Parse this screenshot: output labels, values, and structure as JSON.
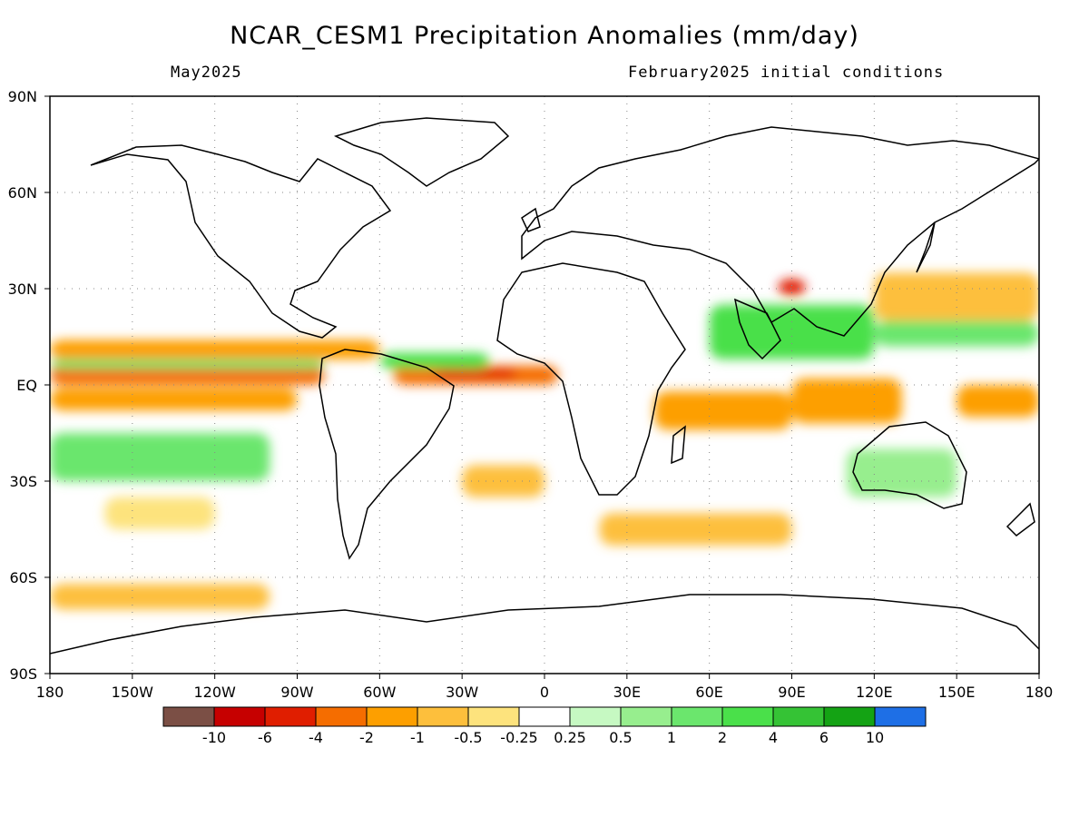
{
  "header": {
    "title": "NCAR_CESM1 Precipitation Anomalies (mm/day)",
    "valid_month": "May2025",
    "init": "February2025 initial conditions"
  },
  "axes": {
    "lat_labels": [
      "90N",
      "60N",
      "30N",
      "EQ",
      "30S",
      "60S",
      "90S"
    ],
    "lat_values": [
      90,
      60,
      30,
      0,
      -30,
      -60,
      -90
    ],
    "lon_labels": [
      "180",
      "150W",
      "120W",
      "90W",
      "60W",
      "30W",
      "0",
      "30E",
      "60E",
      "90E",
      "120E",
      "150E",
      "180"
    ],
    "lon_values": [
      -180,
      -150,
      -120,
      -90,
      -60,
      -30,
      0,
      30,
      60,
      90,
      120,
      150,
      180
    ],
    "grid": true
  },
  "legend": {
    "colors": [
      "#7b4f45",
      "#c60000",
      "#e01e00",
      "#f56d00",
      "#fd9f00",
      "#fdbf3c",
      "#fde37d",
      "#ffffff",
      "#c6f9c2",
      "#97ee8e",
      "#6be66d",
      "#4ae04a",
      "#35c335",
      "#14a314",
      "#1e6fe6"
    ],
    "labels": [
      "-10",
      "-6",
      "-4",
      "-2",
      "-1",
      "-0.5",
      "-0.25",
      "0.25",
      "0.5",
      "1",
      "2",
      "4",
      "6",
      "10"
    ]
  },
  "chart_data": {
    "type": "heatmap",
    "title": "NCAR_CESM1 Precipitation Anomalies (mm/day)",
    "subtitle_left": "May2025",
    "subtitle_right": "February2025 initial conditions",
    "x_range": [
      -180,
      180
    ],
    "y_range": [
      -90,
      90
    ],
    "units": "mm/day",
    "levels": [
      -10,
      -6,
      -4,
      -2,
      -1,
      -0.5,
      -0.25,
      0.25,
      0.5,
      1,
      2,
      4,
      6,
      10
    ],
    "regions": [
      {
        "lon": [
          -180,
          -80
        ],
        "lat": [
          0,
          6
        ],
        "value": -4
      },
      {
        "lon": [
          -180,
          -90
        ],
        "lat": [
          -8,
          -1
        ],
        "value": -2
      },
      {
        "lon": [
          -180,
          -60
        ],
        "lat": [
          8,
          14
        ],
        "value": -2
      },
      {
        "lon": [
          -180,
          -80
        ],
        "lat": [
          5,
          8
        ],
        "value": 1
      },
      {
        "lon": [
          -55,
          5
        ],
        "lat": [
          0,
          6
        ],
        "value": -4
      },
      {
        "lon": [
          -40,
          -10
        ],
        "lat": [
          2,
          5
        ],
        "value": -6
      },
      {
        "lon": [
          -60,
          -20
        ],
        "lat": [
          5,
          10
        ],
        "value": 2
      },
      {
        "lon": [
          40,
          90
        ],
        "lat": [
          -14,
          -2
        ],
        "value": -2
      },
      {
        "lon": [
          90,
          130
        ],
        "lat": [
          -12,
          2
        ],
        "value": -2
      },
      {
        "lon": [
          150,
          180
        ],
        "lat": [
          -10,
          0
        ],
        "value": -2
      },
      {
        "lon": [
          60,
          120
        ],
        "lat": [
          8,
          25
        ],
        "value": 2
      },
      {
        "lon": [
          85,
          95
        ],
        "lat": [
          28,
          33
        ],
        "value": -6
      },
      {
        "lon": [
          120,
          180
        ],
        "lat": [
          20,
          35
        ],
        "value": -1
      },
      {
        "lon": [
          120,
          180
        ],
        "lat": [
          12,
          20
        ],
        "value": 1
      },
      {
        "lon": [
          -180,
          -100
        ],
        "lat": [
          -70,
          -62
        ],
        "value": -1
      },
      {
        "lon": [
          -160,
          -120
        ],
        "lat": [
          -45,
          -35
        ],
        "value": -0.5
      },
      {
        "lon": [
          20,
          90
        ],
        "lat": [
          -50,
          -40
        ],
        "value": -1
      },
      {
        "lon": [
          -30,
          0
        ],
        "lat": [
          -35,
          -25
        ],
        "value": -1
      },
      {
        "lon": [
          -180,
          -100
        ],
        "lat": [
          -30,
          -15
        ],
        "value": 1
      },
      {
        "lon": [
          110,
          150
        ],
        "lat": [
          -35,
          -20
        ],
        "value": 0.5
      }
    ]
  }
}
